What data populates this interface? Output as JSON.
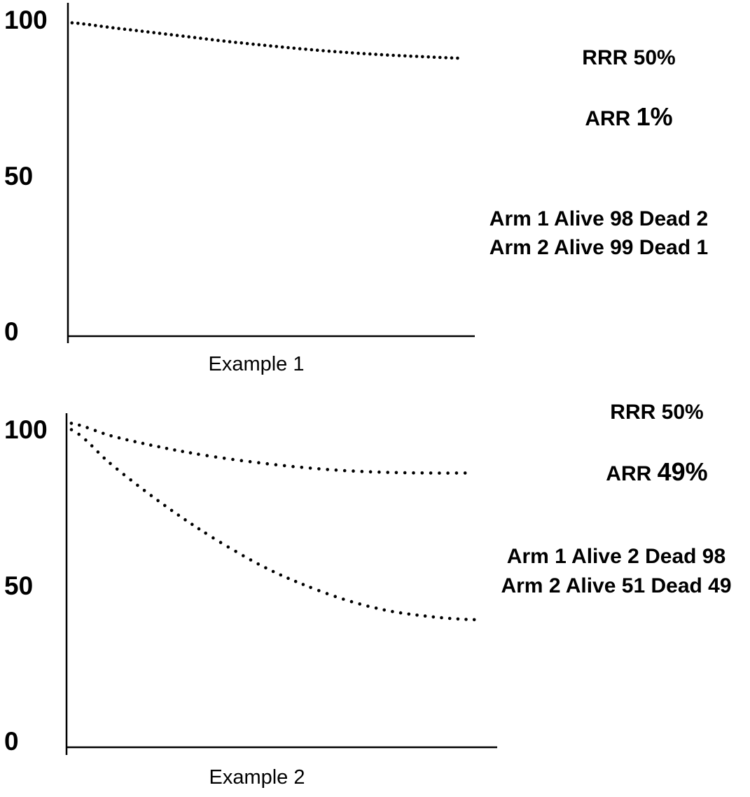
{
  "chart_data": [
    {
      "type": "line",
      "xlabel": "Example 1",
      "ylabel": "",
      "ylim": [
        0,
        100
      ],
      "y_ticks": [
        "0",
        "50",
        "100"
      ],
      "grid": false,
      "series": [
        {
          "x": [
            0,
            10,
            20,
            30,
            40,
            50,
            60,
            70,
            80,
            90,
            100
          ],
          "values": [
            101,
            99.5,
            98,
            96.5,
            95,
            93.7,
            92.5,
            91.5,
            90.7,
            90.1,
            89.6
          ]
        }
      ],
      "annotations": {
        "rrr_label": "RRR",
        "rrr_value": "50%",
        "arr_label": "ARR",
        "arr_value": "1%",
        "arm_lines": [
          "Arm 1 Alive 98 Dead 2",
          "Arm 2  Alive 99 Dead 1"
        ]
      }
    },
    {
      "type": "line",
      "xlabel": "Example 2",
      "ylabel": "",
      "ylim": [
        0,
        100
      ],
      "y_ticks": [
        "0",
        "50",
        "100"
      ],
      "grid": false,
      "series": [
        {
          "x": [
            0,
            10,
            20,
            30,
            40,
            50,
            60,
            70,
            80,
            90,
            100
          ],
          "values": [
            104,
            100,
            97,
            94.5,
            92.5,
            90.9,
            89.6,
            88.7,
            88.2,
            88,
            88
          ]
        },
        {
          "x": [
            0,
            10,
            20,
            30,
            40,
            50,
            60,
            70,
            80,
            90,
            100,
            103
          ],
          "values": [
            102,
            91,
            81,
            72,
            64,
            57,
            51.5,
            47,
            43.8,
            42,
            41,
            41
          ]
        }
      ],
      "annotations": {
        "rrr_label": "RRR",
        "rrr_value": "50%",
        "arr_label": "ARR",
        "arr_value": "49%",
        "arm_lines": [
          "Arm 1 Alive 2 Dead 98",
          "Arm 2 Alive 51 Dead 49"
        ]
      }
    }
  ]
}
